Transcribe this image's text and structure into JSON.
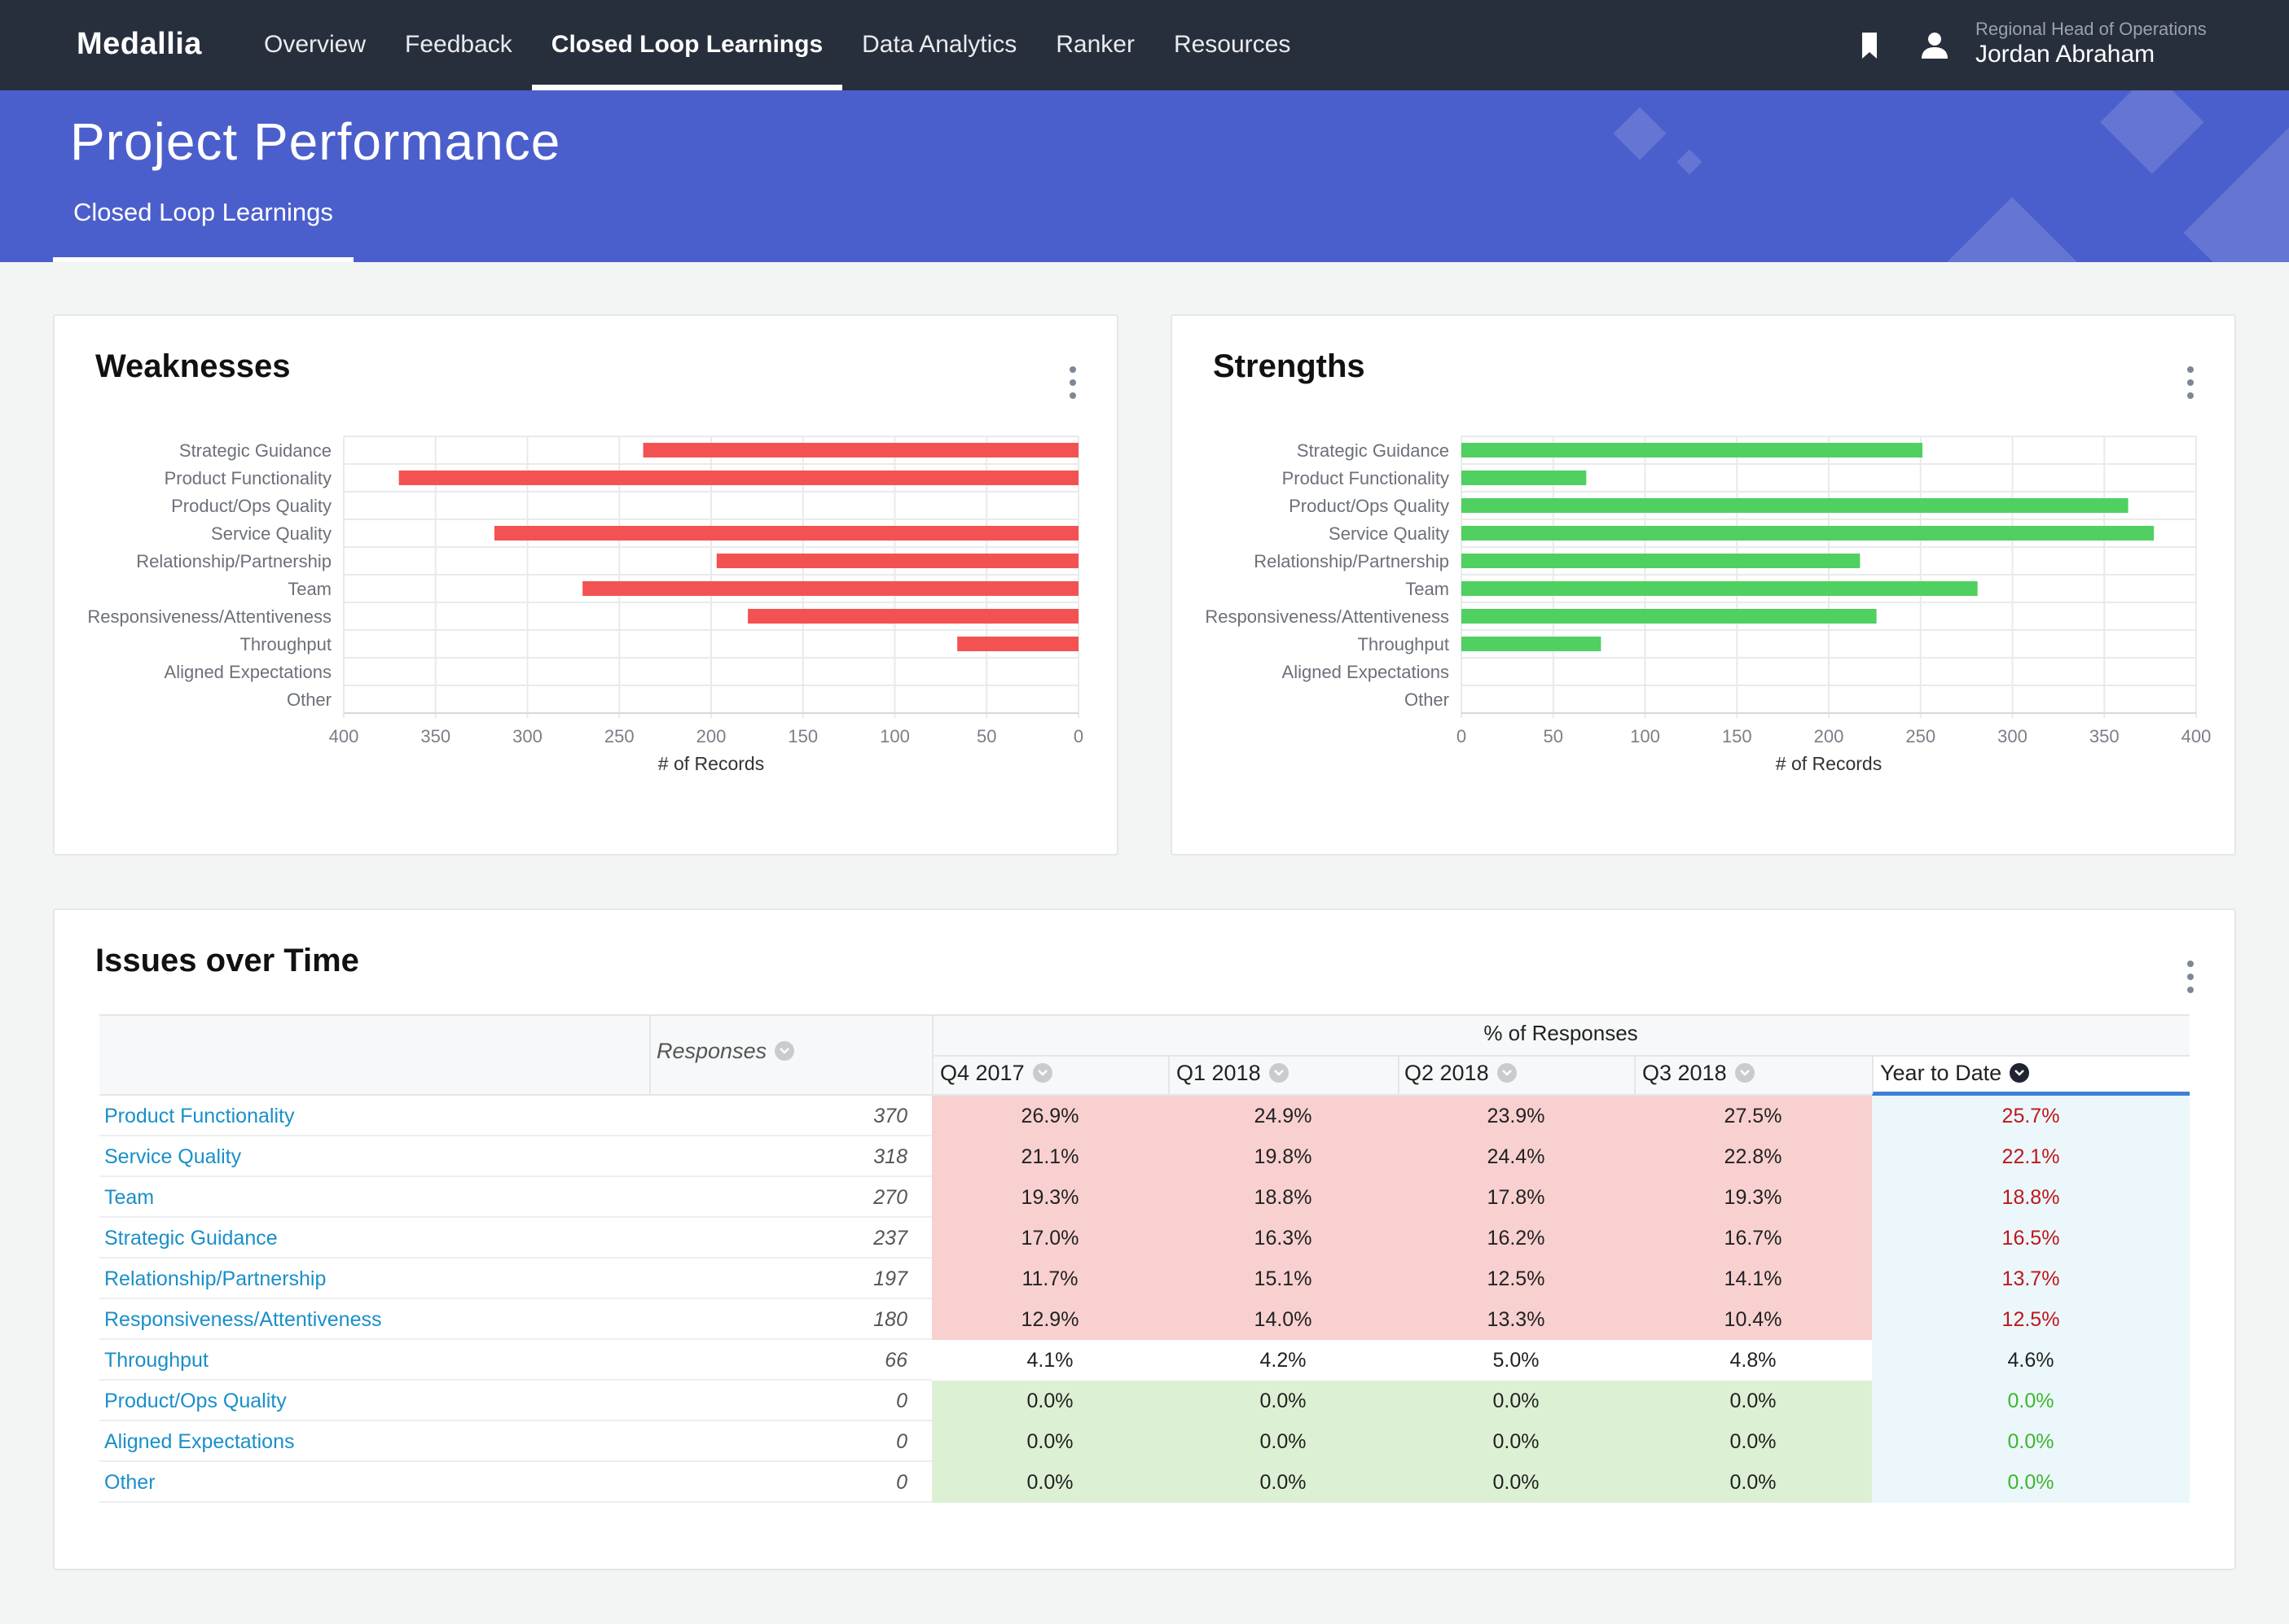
{
  "nav": {
    "brand": "Medallia",
    "items": [
      "Overview",
      "Feedback",
      "Closed Loop Learnings",
      "Data Analytics",
      "Ranker",
      "Resources"
    ],
    "active_index": 2,
    "user_role": "Regional Head of Operations",
    "user_name": "Jordan Abraham",
    "icons": [
      "bookmark-icon",
      "user-icon"
    ]
  },
  "banner": {
    "title": "Project Performance",
    "subtab": "Closed Loop Learnings",
    "color": "#4b5fcc"
  },
  "weaknesses": {
    "title": "Weaknesses",
    "chart_data": {
      "type": "bar",
      "orientation": "horizontal",
      "x_reversed": true,
      "categories": [
        "Strategic Guidance",
        "Product Functionality",
        "Product/Ops Quality",
        "Service Quality",
        "Relationship/Partnership",
        "Team",
        "Responsiveness/Attentiveness",
        "Throughput",
        "Aligned Expectations",
        "Other"
      ],
      "values": [
        237,
        370,
        0,
        318,
        197,
        270,
        180,
        66,
        0,
        0
      ],
      "xlabel": "# of Records",
      "xlim": [
        0,
        400
      ],
      "ticks": [
        400,
        350,
        300,
        250,
        200,
        150,
        100,
        50,
        0
      ],
      "color": "#f35252",
      "grid": true
    }
  },
  "strengths": {
    "title": "Strengths",
    "chart_data": {
      "type": "bar",
      "orientation": "horizontal",
      "categories": [
        "Strategic Guidance",
        "Product Functionality",
        "Product/Ops Quality",
        "Service Quality",
        "Relationship/Partnership",
        "Team",
        "Responsiveness/Attentiveness",
        "Throughput",
        "Aligned Expectations",
        "Other"
      ],
      "values": [
        251,
        68,
        363,
        377,
        217,
        281,
        226,
        76,
        0,
        0
      ],
      "xlabel": "# of Records",
      "xlim": [
        0,
        400
      ],
      "ticks": [
        0,
        50,
        100,
        150,
        200,
        250,
        300,
        350,
        400
      ],
      "color": "#4fd061",
      "grid": true
    }
  },
  "issues": {
    "title": "Issues over Time",
    "headers": {
      "responses": "Responses",
      "group": "% of Responses",
      "quarters": [
        "Q4 2017",
        "Q1 2018",
        "Q2 2018",
        "Q3 2018"
      ],
      "ytd": "Year to Date"
    },
    "rows": [
      {
        "name": "Product Functionality",
        "responses": "370",
        "q": [
          "26.9%",
          "24.9%",
          "23.9%",
          "27.5%"
        ],
        "ytd": "25.7%",
        "status": "bad"
      },
      {
        "name": "Service Quality",
        "responses": "318",
        "q": [
          "21.1%",
          "19.8%",
          "24.4%",
          "22.8%"
        ],
        "ytd": "22.1%",
        "status": "bad"
      },
      {
        "name": "Team",
        "responses": "270",
        "q": [
          "19.3%",
          "18.8%",
          "17.8%",
          "19.3%"
        ],
        "ytd": "18.8%",
        "status": "bad"
      },
      {
        "name": "Strategic Guidance",
        "responses": "237",
        "q": [
          "17.0%",
          "16.3%",
          "16.2%",
          "16.7%"
        ],
        "ytd": "16.5%",
        "status": "bad"
      },
      {
        "name": "Relationship/Partnership",
        "responses": "197",
        "q": [
          "11.7%",
          "15.1%",
          "12.5%",
          "14.1%"
        ],
        "ytd": "13.7%",
        "status": "bad"
      },
      {
        "name": "Responsiveness/Attentiveness",
        "responses": "180",
        "q": [
          "12.9%",
          "14.0%",
          "13.3%",
          "10.4%"
        ],
        "ytd": "12.5%",
        "status": "bad"
      },
      {
        "name": "Throughput",
        "responses": "66",
        "q": [
          "4.1%",
          "4.2%",
          "5.0%",
          "4.8%"
        ],
        "ytd": "4.6%",
        "status": "neutral"
      },
      {
        "name": "Product/Ops Quality",
        "responses": "0",
        "q": [
          "0.0%",
          "0.0%",
          "0.0%",
          "0.0%"
        ],
        "ytd": "0.0%",
        "status": "good"
      },
      {
        "name": "Aligned Expectations",
        "responses": "0",
        "q": [
          "0.0%",
          "0.0%",
          "0.0%",
          "0.0%"
        ],
        "ytd": "0.0%",
        "status": "good"
      },
      {
        "name": "Other",
        "responses": "0",
        "q": [
          "0.0%",
          "0.0%",
          "0.0%",
          "0.0%"
        ],
        "ytd": "0.0%",
        "status": "good"
      }
    ],
    "colors": {
      "bad_bg": "#f8d0d0",
      "good_bg": "#dcf1d3",
      "ytd_bg": "#ebf7fa",
      "bad_text": "#c0161b",
      "good_text": "#3fb52e",
      "link": "#1a8fc9"
    }
  }
}
